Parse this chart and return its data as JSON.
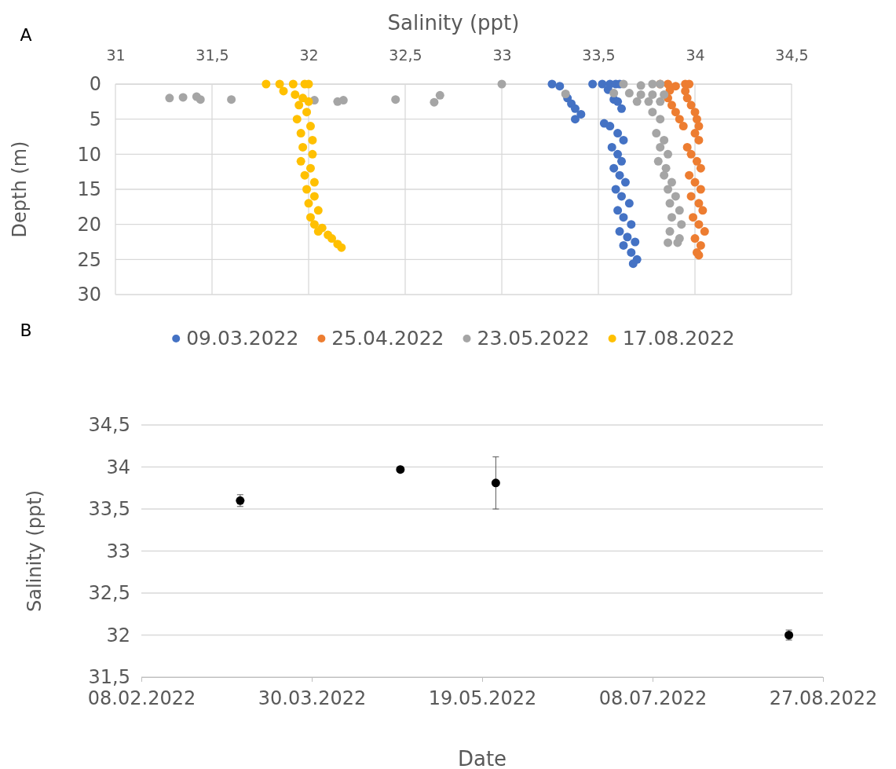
{
  "chart_data": [
    {
      "type": "scatter",
      "annotations": [
        "A"
      ],
      "xlabel": "Salinity (ppt)",
      "ylabel": "Depth (m)",
      "xlim": [
        31,
        34.5
      ],
      "xticks": [
        31,
        {
          "value": 31.5,
          "label": "31,5"
        },
        32,
        {
          "value": 32.5,
          "label": "32,5"
        },
        33,
        {
          "value": 33.5,
          "label": "33,5"
        },
        34,
        {
          "value": 34.5,
          "label": "34,5"
        }
      ],
      "ylim": [
        30,
        0
      ],
      "yticks": [
        0,
        5,
        10,
        15,
        20,
        25,
        30
      ],
      "grid": true,
      "legend": "bottom",
      "marker": "circle",
      "series": [
        {
          "name": "09.03.2022",
          "color": "#4472c4",
          "x": [
            33.26,
            33.3,
            null,
            33.34,
            33.36,
            33.38,
            33.41,
            33.38,
            33.47,
            33.52,
            33.56,
            33.59,
            33.61,
            33.55,
            33.58,
            33.6,
            33.62,
            33.53,
            33.56,
            33.6,
            33.63,
            33.57,
            33.6,
            33.62,
            33.58,
            33.61,
            33.64,
            33.59,
            33.62,
            33.66,
            33.6,
            33.63,
            33.67,
            33.61,
            33.65,
            33.69,
            33.63,
            33.67,
            33.7,
            33.68
          ],
          "values": [
            0,
            0.3,
            null,
            2,
            2.8,
            3.5,
            4.3,
            5,
            0,
            0,
            0,
            0,
            0,
            0.8,
            2.2,
            2.5,
            3.5,
            5.6,
            6,
            7,
            8,
            9,
            10,
            11,
            12,
            13,
            14,
            15,
            16,
            17,
            18,
            19,
            20,
            21,
            21.8,
            22.5,
            23,
            24,
            25,
            25.6
          ]
        },
        {
          "name": "25.04.2022",
          "color": "#ed7d31",
          "x": [
            33.82,
            33.86,
            33.9,
            33.87,
            33.86,
            33.88,
            33.9,
            33.92,
            33.94,
            33.95,
            33.97,
            33.95,
            33.96,
            33.98,
            34.0,
            34.01,
            34.02,
            34.0,
            34.02,
            33.96,
            33.98,
            34.01,
            34.03,
            33.97,
            34.0,
            34.03,
            33.98,
            34.02,
            34.04,
            33.99,
            34.02,
            34.05,
            34.0,
            34.03,
            34.01,
            34.02
          ],
          "values": [
            0,
            0,
            0.3,
            0.9,
            2,
            3,
            4,
            5,
            6,
            0,
            0,
            1,
            2,
            3,
            4,
            5,
            6,
            7,
            8,
            9,
            10,
            11,
            12,
            13,
            14,
            15,
            16,
            17,
            18,
            19,
            20,
            21,
            22,
            23,
            24,
            24.4
          ]
        },
        {
          "name": "23.05.2022",
          "color": "#a5a5a5",
          "x": [
            33.0,
            31.28,
            31.35,
            31.42,
            31.44,
            31.6,
            32.03,
            32.15,
            32.18,
            32.45,
            32.65,
            32.68,
            33.33,
            33.58,
            33.63,
            33.72,
            33.78,
            33.82,
            33.66,
            33.72,
            33.78,
            33.84,
            33.7,
            33.76,
            33.82,
            33.78,
            33.82,
            33.8,
            33.84,
            33.82,
            33.86,
            33.81,
            33.85,
            33.84,
            33.88,
            33.86,
            33.9,
            33.87,
            33.92,
            33.88,
            33.93,
            33.87,
            33.92,
            33.86,
            33.91
          ],
          "values": [
            0,
            2,
            1.9,
            1.8,
            2.2,
            2.2,
            2.3,
            2.5,
            2.3,
            2.2,
            2.6,
            1.6,
            1.4,
            1.3,
            0,
            0.2,
            0,
            0,
            1.3,
            1.5,
            1.5,
            1.5,
            2.5,
            2.5,
            2.5,
            4,
            5,
            7,
            8,
            9,
            10,
            11,
            12,
            13,
            14,
            15,
            16,
            17,
            18,
            19,
            20,
            21,
            22,
            22.6,
            22.6
          ]
        },
        {
          "name": "17.08.2022",
          "color": "#ffc000",
          "x": [
            31.78,
            31.85,
            31.92,
            31.98,
            32.0,
            31.87,
            31.93,
            31.97,
            32.0,
            31.95,
            31.99,
            31.94,
            32.01,
            31.96,
            32.02,
            31.97,
            32.02,
            31.96,
            32.01,
            31.98,
            32.03,
            31.99,
            32.03,
            32.0,
            32.05,
            32.01,
            32.03,
            32.07,
            32.05,
            32.1,
            32.12,
            32.15,
            32.17
          ],
          "values": [
            0,
            0,
            0,
            0,
            0,
            1,
            1.5,
            2,
            2.5,
            3,
            4,
            5,
            6,
            7,
            8,
            9,
            10,
            11,
            12,
            13,
            14,
            15,
            16,
            17,
            18,
            19,
            20,
            20.5,
            21,
            21.5,
            22,
            22.8,
            23.3
          ]
        }
      ]
    },
    {
      "type": "scatter",
      "annotations": [
        "B"
      ],
      "xlabel": "Date",
      "ylabel": "Salinity (ppt)",
      "xlim": [
        "2022-02-08",
        "2022-08-27"
      ],
      "xticks": [
        {
          "value": "2022-02-08",
          "label": "08.02.2022"
        },
        {
          "value": "2022-03-30",
          "label": "30.03.2022"
        },
        {
          "value": "2022-05-19",
          "label": "19.05.2022"
        },
        {
          "value": "2022-07-08",
          "label": "08.07.2022"
        },
        {
          "value": "2022-08-27",
          "label": "27.08.2022"
        }
      ],
      "ylim": [
        31.5,
        34.5
      ],
      "yticks": [
        {
          "value": 31.5,
          "label": "31,5"
        },
        32,
        {
          "value": 32.5,
          "label": "32,5"
        },
        33,
        {
          "value": 33.5,
          "label": "33,5"
        },
        34,
        {
          "value": 34.5,
          "label": "34,5"
        }
      ],
      "grid": "y",
      "marker": "circle",
      "series": [
        {
          "color": "#000000",
          "x": [
            "2022-03-09",
            "2022-04-25",
            "2022-05-23",
            "2022-08-17"
          ],
          "values": [
            33.6,
            33.97,
            33.81,
            32.0
          ],
          "errors": [
            0.07,
            0.03,
            0.31,
            0.06
          ]
        }
      ]
    }
  ]
}
